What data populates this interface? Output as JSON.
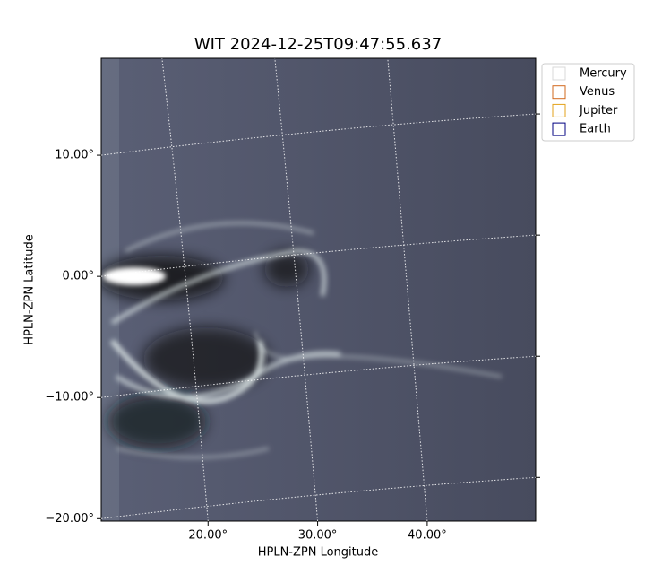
{
  "chart_data": {
    "type": "image",
    "title": "WIT 2024-12-25T09:47:55.637",
    "x_label": "HPLN-ZPN Longitude",
    "y_label": "HPLN-ZPN Latitude",
    "xlim": [
      10.25,
      49.9
    ],
    "ylim": [
      -20.2,
      18.0
    ],
    "xticks": [
      {
        "value": 20,
        "label": "20.00°"
      },
      {
        "value": 30,
        "label": "30.00°"
      },
      {
        "value": 40,
        "label": "40.00°"
      }
    ],
    "yticks": [
      {
        "value": 10,
        "label": "10.00°"
      },
      {
        "value": 0,
        "label": "0.00°"
      },
      {
        "value": -10,
        "label": "−10.00°"
      },
      {
        "value": -20,
        "label": "−20.00°"
      }
    ],
    "grid": true,
    "legend_position": "upper right outside",
    "series": [
      {
        "name": "Mercury",
        "color": "#d9d9d9"
      },
      {
        "name": "Venus",
        "color": "#d2691e"
      },
      {
        "name": "Jupiter",
        "color": "#e3a21a"
      },
      {
        "name": "Earth",
        "color": "#000080"
      }
    ]
  }
}
